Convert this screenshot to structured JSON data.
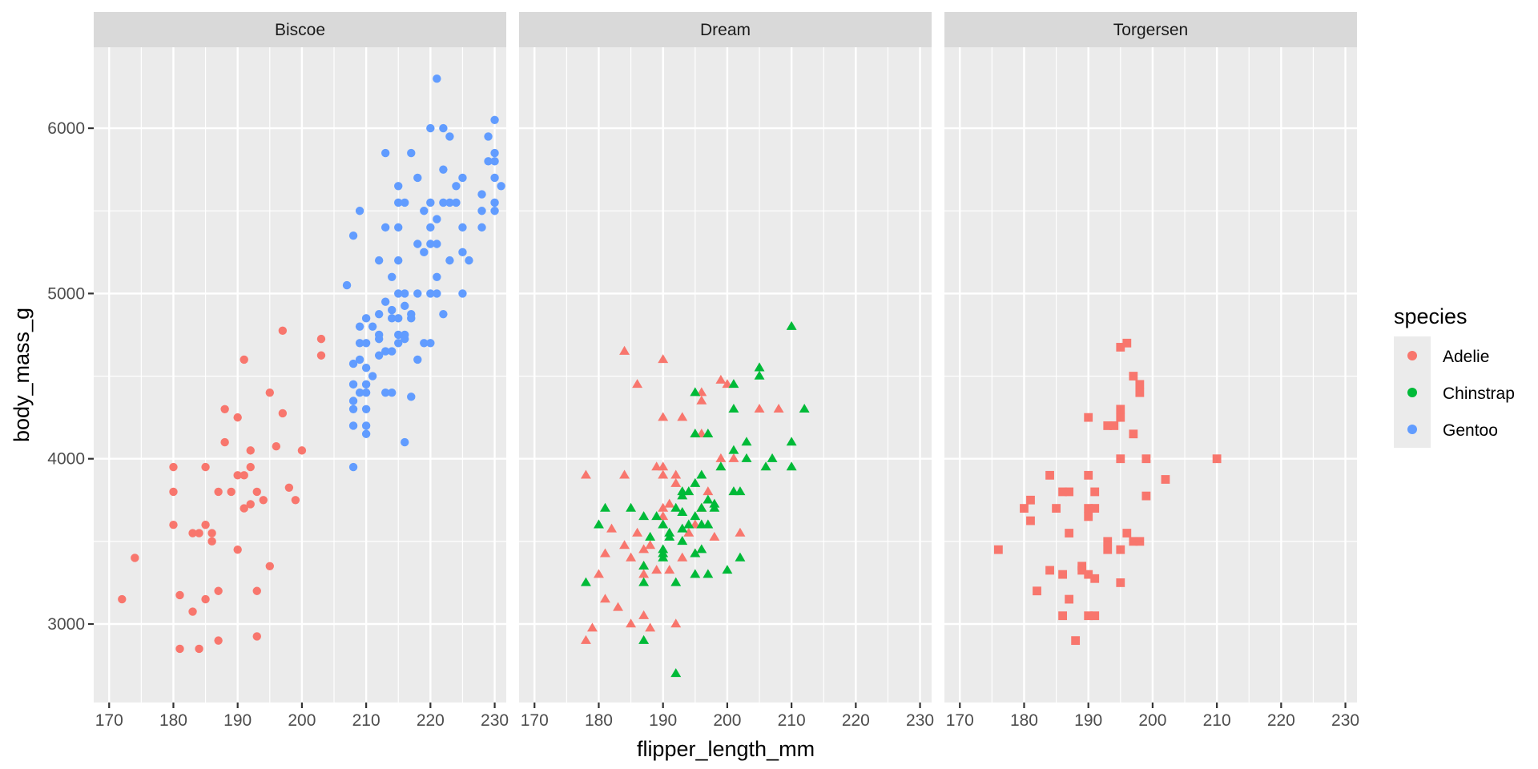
{
  "chart_data": {
    "type": "scatter",
    "facet_by": "island",
    "facets": [
      "Biscoe",
      "Dream",
      "Torgersen"
    ],
    "xlabel": "flipper_length_mm",
    "ylabel": "body_mass_g",
    "xlim": [
      167.6,
      231.8
    ],
    "ylim": [
      2525,
      6490
    ],
    "x_ticks": [
      170,
      180,
      190,
      200,
      210,
      220,
      230
    ],
    "y_ticks": [
      3000,
      4000,
      5000,
      6000
    ],
    "x_tick_labels": [
      "170",
      "180",
      "190",
      "200",
      "210",
      "220",
      "230"
    ],
    "y_tick_labels": [
      "3000",
      "4000",
      "5000",
      "6000"
    ],
    "grid": true,
    "legend": {
      "title": "species",
      "position": "right",
      "entries": [
        {
          "label": "Adelie",
          "color": "#F8766D"
        },
        {
          "label": "Chinstrap",
          "color": "#00BA38"
        },
        {
          "label": "Gentoo",
          "color": "#619CFF"
        }
      ]
    },
    "shapes": {
      "Biscoe": "circle",
      "Dream": "triangle",
      "Torgersen": "square"
    },
    "series": [
      {
        "facet": "Biscoe",
        "species": "Adelie",
        "color": "#F8766D",
        "points": [
          [
            172,
            3150
          ],
          [
            174,
            3400
          ],
          [
            180,
            3600
          ],
          [
            180,
            3800
          ],
          [
            180,
            3950
          ],
          [
            181,
            2850
          ],
          [
            181,
            3175
          ],
          [
            183,
            3550
          ],
          [
            183,
            3075
          ],
          [
            184,
            3550
          ],
          [
            184,
            2850
          ],
          [
            185,
            3600
          ],
          [
            185,
            3950
          ],
          [
            185,
            3150
          ],
          [
            186,
            3500
          ],
          [
            186,
            3550
          ],
          [
            187,
            3800
          ],
          [
            187,
            3200
          ],
          [
            187,
            2900
          ],
          [
            188,
            4100
          ],
          [
            188,
            4300
          ],
          [
            189,
            3800
          ],
          [
            190,
            3900
          ],
          [
            190,
            4250
          ],
          [
            190,
            3450
          ],
          [
            191,
            4600
          ],
          [
            191,
            3900
          ],
          [
            191,
            3700
          ],
          [
            192,
            3725
          ],
          [
            192,
            3950
          ],
          [
            192,
            4050
          ],
          [
            193,
            3800
          ],
          [
            193,
            3200
          ],
          [
            193,
            2925
          ],
          [
            194,
            3750
          ],
          [
            195,
            4400
          ],
          [
            195,
            3350
          ],
          [
            196,
            4075
          ],
          [
            197,
            4775
          ],
          [
            197,
            4275
          ],
          [
            198,
            3825
          ],
          [
            199,
            3750
          ],
          [
            200,
            4050
          ],
          [
            203,
            4725
          ],
          [
            203,
            4625
          ]
        ]
      },
      {
        "facet": "Biscoe",
        "species": "Gentoo",
        "color": "#619CFF",
        "points": [
          [
            207,
            5050
          ],
          [
            208,
            3950
          ],
          [
            208,
            4200
          ],
          [
            208,
            4300
          ],
          [
            208,
            4350
          ],
          [
            208,
            4450
          ],
          [
            208,
            4575
          ],
          [
            208,
            5350
          ],
          [
            209,
            5500
          ],
          [
            209,
            4800
          ],
          [
            209,
            4600
          ],
          [
            209,
            4700
          ],
          [
            209,
            4400
          ],
          [
            210,
            4700
          ],
          [
            210,
            4850
          ],
          [
            210,
            4450
          ],
          [
            210,
            4550
          ],
          [
            210,
            4200
          ],
          [
            210,
            4150
          ],
          [
            210,
            4300
          ],
          [
            210,
            4400
          ],
          [
            211,
            4500
          ],
          [
            211,
            4800
          ],
          [
            212,
            4875
          ],
          [
            212,
            4750
          ],
          [
            212,
            4725
          ],
          [
            212,
            4625
          ],
          [
            212,
            5200
          ],
          [
            213,
            4950
          ],
          [
            213,
            5400
          ],
          [
            213,
            5850
          ],
          [
            213,
            4400
          ],
          [
            213,
            4650
          ],
          [
            214,
            4850
          ],
          [
            214,
            4900
          ],
          [
            214,
            5100
          ],
          [
            214,
            4400
          ],
          [
            214,
            4650
          ],
          [
            215,
            5000
          ],
          [
            215,
            5200
          ],
          [
            215,
            5550
          ],
          [
            215,
            5650
          ],
          [
            215,
            5400
          ],
          [
            215,
            4750
          ],
          [
            215,
            4850
          ],
          [
            215,
            4700
          ],
          [
            216,
            4750
          ],
          [
            216,
            5000
          ],
          [
            216,
            4925
          ],
          [
            216,
            5550
          ],
          [
            216,
            4100
          ],
          [
            216,
            4725
          ],
          [
            217,
            4875
          ],
          [
            217,
            5850
          ],
          [
            217,
            4375
          ],
          [
            217,
            4850
          ],
          [
            218,
            5700
          ],
          [
            218,
            5300
          ],
          [
            218,
            4600
          ],
          [
            218,
            5000
          ],
          [
            219,
            5250
          ],
          [
            219,
            5500
          ],
          [
            219,
            4700
          ],
          [
            220,
            5300
          ],
          [
            220,
            6000
          ],
          [
            220,
            4700
          ],
          [
            220,
            5400
          ],
          [
            220,
            5000
          ],
          [
            220,
            5550
          ],
          [
            221,
            5300
          ],
          [
            221,
            5450
          ],
          [
            221,
            6300
          ],
          [
            221,
            5100
          ],
          [
            221,
            5000
          ],
          [
            222,
            5750
          ],
          [
            222,
            6000
          ],
          [
            222,
            4875
          ],
          [
            222,
            5550
          ],
          [
            223,
            5950
          ],
          [
            223,
            5550
          ],
          [
            223,
            5200
          ],
          [
            224,
            5650
          ],
          [
            224,
            5550
          ],
          [
            225,
            5700
          ],
          [
            225,
            5400
          ],
          [
            225,
            5250
          ],
          [
            225,
            5000
          ],
          [
            226,
            5200
          ],
          [
            228,
            5400
          ],
          [
            228,
            5500
          ],
          [
            228,
            5600
          ],
          [
            229,
            5950
          ],
          [
            229,
            5800
          ],
          [
            230,
            5850
          ],
          [
            230,
            5700
          ],
          [
            230,
            5800
          ],
          [
            230,
            5500
          ],
          [
            230,
            6050
          ],
          [
            230,
            5550
          ],
          [
            231,
            5650
          ]
        ]
      },
      {
        "facet": "Dream",
        "species": "Adelie",
        "color": "#F8766D",
        "points": [
          [
            178,
            3900
          ],
          [
            178,
            2900
          ],
          [
            179,
            2975
          ],
          [
            180,
            3300
          ],
          [
            181,
            3425
          ],
          [
            181,
            3150
          ],
          [
            182,
            3575
          ],
          [
            183,
            3100
          ],
          [
            184,
            3900
          ],
          [
            184,
            4650
          ],
          [
            184,
            3475
          ],
          [
            185,
            3000
          ],
          [
            185,
            3400
          ],
          [
            186,
            4450
          ],
          [
            186,
            3550
          ],
          [
            187,
            3300
          ],
          [
            187,
            3450
          ],
          [
            187,
            3050
          ],
          [
            187,
            3350
          ],
          [
            188,
            3475
          ],
          [
            188,
            2975
          ],
          [
            189,
            3950
          ],
          [
            189,
            3325
          ],
          [
            190,
            3700
          ],
          [
            190,
            3950
          ],
          [
            190,
            4600
          ],
          [
            190,
            4250
          ],
          [
            190,
            3900
          ],
          [
            190,
            3650
          ],
          [
            191,
            3725
          ],
          [
            191,
            3325
          ],
          [
            192,
            3000
          ],
          [
            192,
            3900
          ],
          [
            192,
            3850
          ],
          [
            193,
            4250
          ],
          [
            193,
            3400
          ],
          [
            194,
            3550
          ],
          [
            195,
            3425
          ],
          [
            195,
            3600
          ],
          [
            196,
            4350
          ],
          [
            196,
            4400
          ],
          [
            196,
            4150
          ],
          [
            196,
            3700
          ],
          [
            197,
            3800
          ],
          [
            198,
            3525
          ],
          [
            199,
            4000
          ],
          [
            199,
            4475
          ],
          [
            200,
            4450
          ],
          [
            201,
            4000
          ],
          [
            202,
            3550
          ],
          [
            205,
            4300
          ],
          [
            208,
            4300
          ]
        ]
      },
      {
        "facet": "Dream",
        "species": "Chinstrap",
        "color": "#00BA38",
        "points": [
          [
            178,
            3250
          ],
          [
            180,
            3600
          ],
          [
            181,
            3700
          ],
          [
            185,
            3700
          ],
          [
            187,
            3650
          ],
          [
            187,
            3350
          ],
          [
            187,
            3250
          ],
          [
            187,
            2900
          ],
          [
            188,
            3525
          ],
          [
            189,
            3650
          ],
          [
            190,
            3600
          ],
          [
            190,
            3425
          ],
          [
            190,
            3450
          ],
          [
            190,
            3400
          ],
          [
            191,
            3550
          ],
          [
            192,
            3700
          ],
          [
            192,
            3250
          ],
          [
            192,
            2700
          ],
          [
            193,
            3800
          ],
          [
            193,
            3775
          ],
          [
            193,
            3675
          ],
          [
            193,
            3500
          ],
          [
            194,
            3800
          ],
          [
            194,
            3600
          ],
          [
            195,
            3300
          ],
          [
            195,
            3650
          ],
          [
            195,
            3425
          ],
          [
            195,
            4400
          ],
          [
            195,
            4150
          ],
          [
            195,
            3850
          ],
          [
            196,
            3700
          ],
          [
            196,
            3450
          ],
          [
            196,
            3900
          ],
          [
            197,
            4150
          ],
          [
            197,
            3600
          ],
          [
            197,
            3750
          ],
          [
            197,
            3300
          ],
          [
            198,
            3725
          ],
          [
            198,
            3700
          ],
          [
            199,
            3950
          ],
          [
            200,
            3325
          ],
          [
            201,
            3800
          ],
          [
            201,
            4050
          ],
          [
            201,
            4300
          ],
          [
            201,
            4450
          ],
          [
            202,
            3400
          ],
          [
            202,
            3800
          ],
          [
            203,
            4000
          ],
          [
            203,
            4100
          ],
          [
            205,
            4550
          ],
          [
            205,
            4500
          ],
          [
            206,
            3950
          ],
          [
            207,
            4000
          ],
          [
            210,
            4800
          ],
          [
            210,
            4100
          ],
          [
            210,
            3950
          ],
          [
            212,
            4300
          ],
          [
            196,
            3600
          ],
          [
            193,
            3575
          ],
          [
            191,
            3525
          ]
        ]
      },
      {
        "facet": "Torgersen",
        "species": "Adelie",
        "color": "#F8766D",
        "points": [
          [
            176,
            3450
          ],
          [
            180,
            3700
          ],
          [
            181,
            3750
          ],
          [
            181,
            3625
          ],
          [
            182,
            3200
          ],
          [
            184,
            3325
          ],
          [
            184,
            3900
          ],
          [
            185,
            3700
          ],
          [
            186,
            3800
          ],
          [
            186,
            3050
          ],
          [
            186,
            3300
          ],
          [
            187,
            3800
          ],
          [
            187,
            3150
          ],
          [
            187,
            3550
          ],
          [
            188,
            2900
          ],
          [
            189,
            3350
          ],
          [
            189,
            3325
          ],
          [
            190,
            3900
          ],
          [
            190,
            4250
          ],
          [
            190,
            3700
          ],
          [
            190,
            3650
          ],
          [
            190,
            3050
          ],
          [
            190,
            3300
          ],
          [
            191,
            3800
          ],
          [
            191,
            3700
          ],
          [
            191,
            3050
          ],
          [
            191,
            3275
          ],
          [
            193,
            4200
          ],
          [
            193,
            3450
          ],
          [
            193,
            3500
          ],
          [
            194,
            4200
          ],
          [
            195,
            4250
          ],
          [
            195,
            4300
          ],
          [
            195,
            4675
          ],
          [
            195,
            3250
          ],
          [
            195,
            4000
          ],
          [
            195,
            3450
          ],
          [
            196,
            4700
          ],
          [
            196,
            3550
          ],
          [
            197,
            4500
          ],
          [
            197,
            3500
          ],
          [
            197,
            4150
          ],
          [
            198,
            4400
          ],
          [
            198,
            4450
          ],
          [
            198,
            3500
          ],
          [
            199,
            4000
          ],
          [
            199,
            3775
          ],
          [
            202,
            3875
          ],
          [
            210,
            4000
          ]
        ]
      }
    ]
  }
}
